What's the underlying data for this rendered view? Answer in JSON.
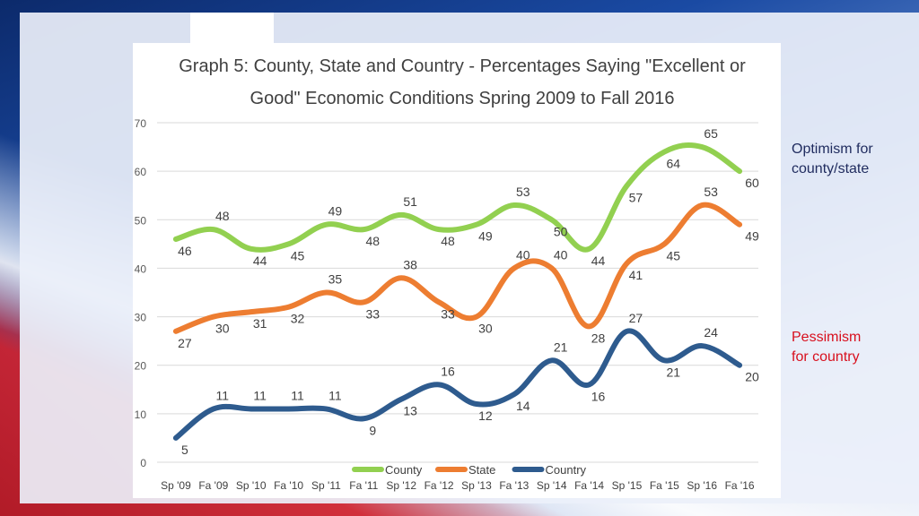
{
  "side_notes": {
    "optimism": [
      "Optimism for",
      "county/state"
    ],
    "pessimism": [
      "Pessimism",
      "for country"
    ]
  },
  "chart_data": {
    "type": "line",
    "title": [
      "Graph 5: County, State and Country - Percentages Saying \"Excellent or",
      "Good\" Economic Conditions Spring 2009 to Fall 2016"
    ],
    "xlabel": "",
    "ylabel": "",
    "ylim": [
      0,
      70
    ],
    "yticks": [
      0,
      10,
      20,
      30,
      40,
      50,
      60,
      70
    ],
    "grid": true,
    "legend_position": "bottom",
    "categories": [
      "Sp '09",
      "Fa '09",
      "Sp '10",
      "Fa '10",
      "Sp '11",
      "Fa '11",
      "Sp '12",
      "Fa '12",
      "Sp '13",
      "Fa '13",
      "Sp '14",
      "Fa '14",
      "Sp '15",
      "Fa '15",
      "Sp '16",
      "Fa '16"
    ],
    "x": [
      0,
      1,
      2,
      3,
      4,
      5,
      6,
      7,
      8,
      9,
      10,
      11,
      12,
      13,
      14,
      15,
      16,
      17,
      18,
      19,
      20,
      21,
      22,
      23,
      24,
      25,
      26,
      27,
      28,
      29,
      30
    ],
    "series": [
      {
        "name": "County",
        "color": "#92d050",
        "values": [
          46,
          48,
          44,
          45,
          49,
          48,
          51,
          48,
          49,
          53,
          50,
          44,
          57,
          64,
          65,
          60
        ],
        "point_x": [
          0,
          1,
          2,
          3,
          4,
          5,
          6,
          7,
          8,
          9,
          10,
          11,
          12,
          13,
          14,
          15
        ],
        "label_text": [
          "46",
          "48",
          "44",
          "45",
          "49",
          "48",
          "51",
          "48",
          "49",
          "53",
          "50",
          "44",
          "57",
          "64",
          "65",
          "60"
        ]
      },
      {
        "name": "State",
        "color": "#ed7d31",
        "values": [
          27,
          30,
          31,
          32,
          35,
          33,
          38,
          33,
          30,
          40,
          40,
          28,
          41,
          45,
          53,
          49
        ],
        "label_text": [
          "27",
          "30",
          "31",
          "32",
          "35",
          "33",
          "38",
          "33",
          "30",
          "40",
          "40",
          "28",
          "41",
          "45",
          "53",
          "49"
        ]
      },
      {
        "name": "Country",
        "color": "#2e5b8e",
        "values": [
          5,
          11,
          11,
          11,
          11,
          9,
          13,
          16,
          12,
          14,
          21,
          16,
          27,
          21,
          24,
          20
        ],
        "label_text": [
          "5",
          "11",
          "11",
          "11",
          "11",
          "9",
          "13",
          "16",
          "12",
          "14",
          "21",
          "16",
          "27",
          "21",
          "24",
          "20"
        ]
      }
    ]
  }
}
